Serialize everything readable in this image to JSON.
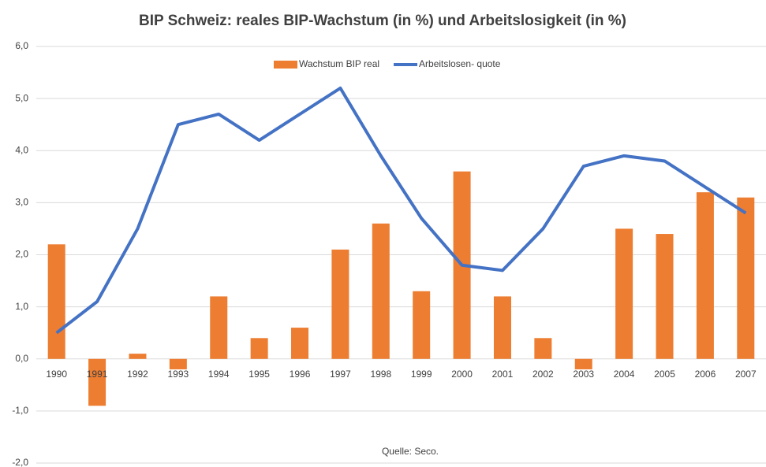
{
  "chart_data": {
    "type": "bar_line",
    "title": "BIP Schweiz: reales BIP-Wachstum (in %) und Arbeitslosigkeit (in %)",
    "annotation": "Quelle: Seco.",
    "categories": [
      "1990",
      "1991",
      "1992",
      "1993",
      "1994",
      "1995",
      "1996",
      "1997",
      "1998",
      "1999",
      "2000",
      "2001",
      "2002",
      "2003",
      "2004",
      "2005",
      "2006",
      "2007"
    ],
    "series": [
      {
        "name": "Wachstum BIP real",
        "type": "bar",
        "color": "#ed7d31",
        "values": [
          2.2,
          -0.9,
          0.1,
          -0.2,
          1.2,
          0.4,
          0.6,
          2.1,
          2.6,
          1.3,
          3.6,
          1.2,
          0.4,
          -0.2,
          2.5,
          2.4,
          3.2,
          3.1
        ]
      },
      {
        "name": "Arbeitslosen- quote",
        "type": "line",
        "color": "#4472c4",
        "values": [
          0.5,
          1.1,
          2.5,
          4.5,
          4.7,
          4.2,
          4.7,
          5.2,
          3.9,
          2.7,
          1.8,
          1.7,
          2.5,
          3.7,
          3.9,
          3.8,
          3.3,
          2.8
        ]
      }
    ],
    "ylim": [
      -2,
      6
    ],
    "yticks": [
      {
        "value": -2,
        "label": "-2,0"
      },
      {
        "value": -1,
        "label": "-1,0"
      },
      {
        "value": 0,
        "label": "0,0"
      },
      {
        "value": 1,
        "label": "1,0"
      },
      {
        "value": 2,
        "label": "2,0"
      },
      {
        "value": 3,
        "label": "3,0"
      },
      {
        "value": 4,
        "label": "4,0"
      },
      {
        "value": 5,
        "label": "5,0"
      },
      {
        "value": 6,
        "label": "6,0"
      }
    ],
    "grid": true,
    "legend": "top"
  }
}
